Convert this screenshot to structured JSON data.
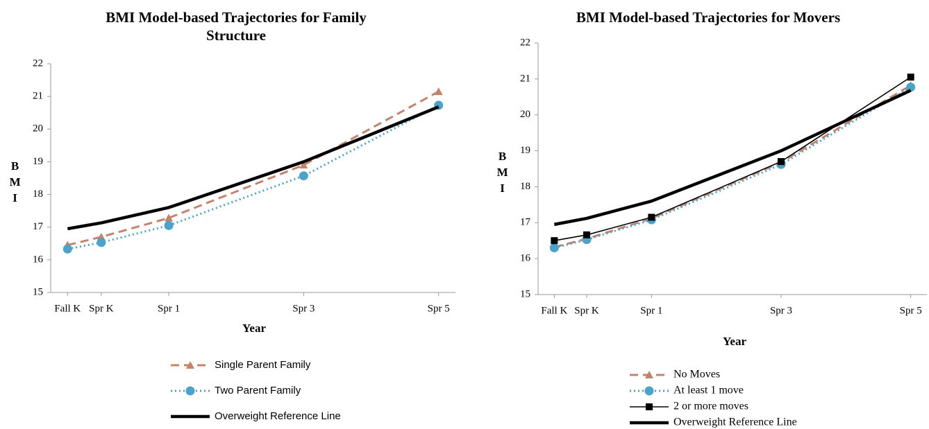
{
  "chart_data": [
    {
      "type": "line",
      "title": "BMI Model-based Trajectories for Family Structure",
      "x_label": "Year",
      "y_label": "BMI",
      "x": [
        0,
        0.5,
        1.5,
        3.5,
        5.5
      ],
      "xlim": [
        -0.25,
        5.75
      ],
      "xticks": [
        {
          "value": 0,
          "label": "Fall K"
        },
        {
          "value": 0.5,
          "label": "Spr K"
        },
        {
          "value": 1.5,
          "label": "Spr 1"
        },
        {
          "value": 3.5,
          "label": "Spr 3"
        },
        {
          "value": 5.5,
          "label": "Spr 5"
        }
      ],
      "ylim": [
        15,
        22
      ],
      "yticks": [
        15,
        16,
        17,
        18,
        19,
        20,
        21,
        22
      ],
      "grid": false,
      "series": [
        {
          "name": "Single Parent Family",
          "color": "#c5836b",
          "dash": "dashed",
          "marker": "triangle",
          "values": [
            16.45,
            16.7,
            17.28,
            18.9,
            21.15
          ]
        },
        {
          "name": "Two Parent Family",
          "color": "#4aa3c8",
          "dash": "dotted",
          "marker": "circle",
          "values": [
            16.33,
            16.53,
            17.05,
            18.57,
            20.73
          ]
        },
        {
          "name": "Overweight Reference Line",
          "color": "#000000",
          "dash": "solid",
          "marker": "none",
          "values": [
            16.95,
            17.13,
            17.6,
            19.0,
            20.68
          ]
        }
      ]
    },
    {
      "type": "line",
      "title": "BMI Model-based Trajectories for Movers",
      "x_label": "Year",
      "y_label": "BMI",
      "x": [
        0,
        0.5,
        1.5,
        3.5,
        5.5
      ],
      "xlim": [
        -0.25,
        5.75
      ],
      "xticks": [
        {
          "value": 0,
          "label": "Fall K"
        },
        {
          "value": 0.5,
          "label": "Spr K"
        },
        {
          "value": 1.5,
          "label": "Spr 1"
        },
        {
          "value": 3.5,
          "label": "Spr 3"
        },
        {
          "value": 5.5,
          "label": "Spr 5"
        }
      ],
      "ylim": [
        15,
        22
      ],
      "yticks": [
        15,
        16,
        17,
        18,
        19,
        20,
        21,
        22
      ],
      "grid": false,
      "series": [
        {
          "name": "No Moves",
          "color": "#c5836b",
          "dash": "dashed",
          "marker": "triangle",
          "values": [
            16.32,
            16.55,
            17.12,
            18.68,
            20.82
          ]
        },
        {
          "name": "At least 1 move",
          "color": "#4aa3c8",
          "dash": "dotted",
          "marker": "circle",
          "values": [
            16.3,
            16.53,
            17.08,
            18.62,
            20.77
          ]
        },
        {
          "name": "2 or more moves",
          "color": "#000000",
          "dash": "thin",
          "marker": "square",
          "values": [
            16.5,
            16.66,
            17.15,
            18.7,
            21.05
          ]
        },
        {
          "name": "Overweight Reference Line",
          "color": "#000000",
          "dash": "solid",
          "marker": "none",
          "values": [
            16.95,
            17.12,
            17.6,
            19.0,
            20.68
          ]
        }
      ]
    }
  ]
}
